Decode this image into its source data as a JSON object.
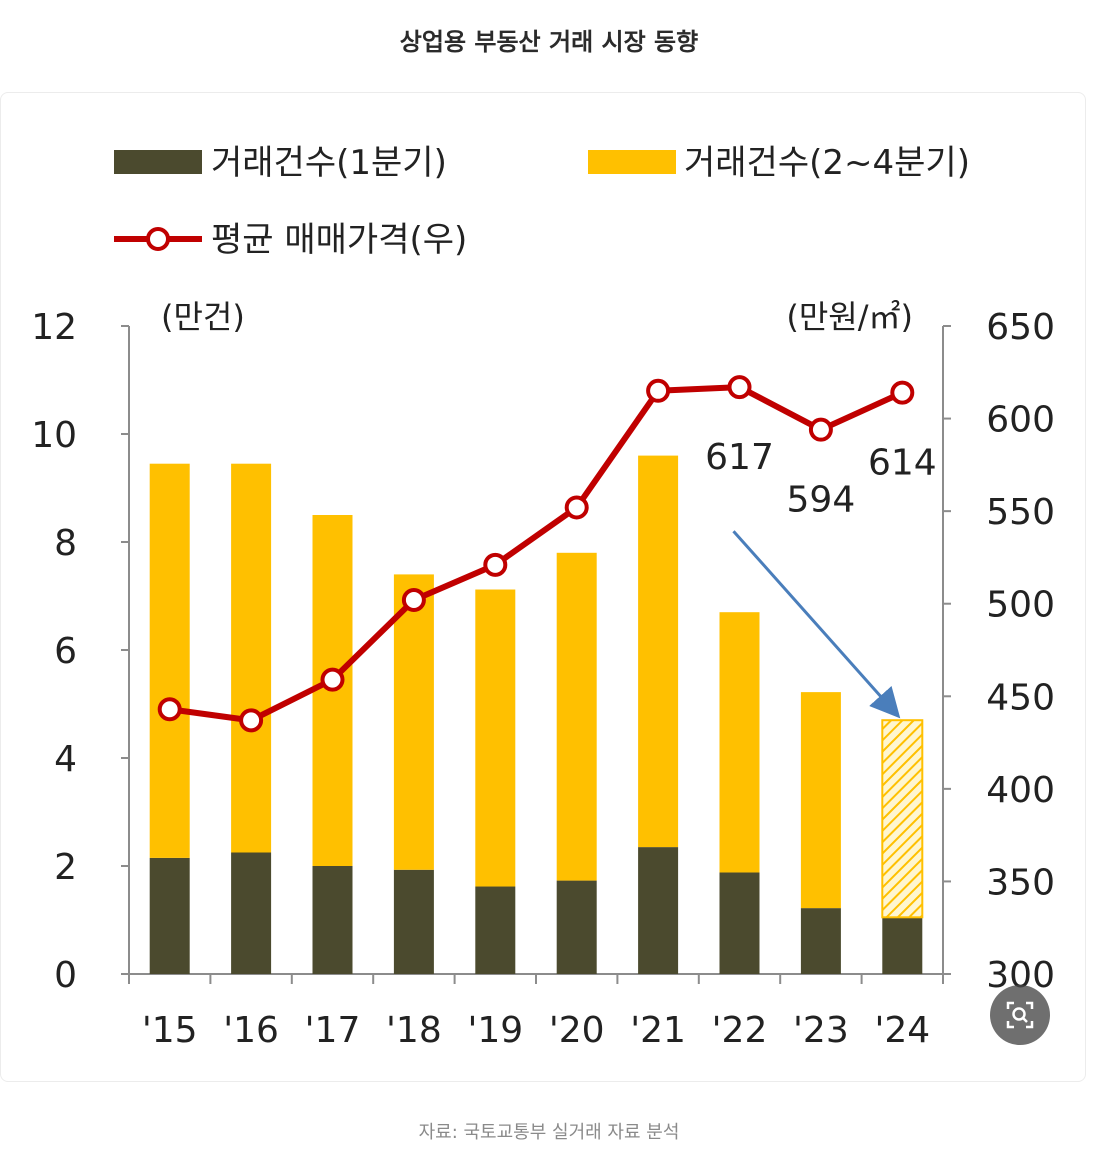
{
  "page": {
    "title": "상업용 부동산 거래 시장 동향",
    "source": "자료: 국토교통부 실거래 자료 분석",
    "zoom_icon": "zoom-search-icon"
  },
  "colors": {
    "q1": "#4b4a2e",
    "q24": "#ffc000",
    "line": "#c00000",
    "arrow": "#4a7ebb",
    "axis": "#8c8c8c"
  },
  "chart_data": {
    "type": "bar",
    "title": "상업용 부동산 거래 시장 동향",
    "categories": [
      "'15",
      "'16",
      "'17",
      "'18",
      "'19",
      "'20",
      "'21",
      "'22",
      "'23",
      "'24"
    ],
    "series": [
      {
        "name": "거래건수(1분기)",
        "kind": "stacked-bar",
        "axis": "left",
        "values": [
          2.15,
          2.25,
          2.0,
          1.93,
          1.62,
          1.73,
          2.35,
          1.88,
          1.22,
          1.05
        ]
      },
      {
        "name": "거래건수(2~4분기)",
        "kind": "stacked-bar",
        "axis": "left",
        "values": [
          7.3,
          7.2,
          6.5,
          5.47,
          5.5,
          6.07,
          7.25,
          4.82,
          4.0,
          null
        ],
        "projected_values": [
          null,
          null,
          null,
          null,
          null,
          null,
          null,
          null,
          null,
          3.65
        ]
      },
      {
        "name": "평균 매매가격(우)",
        "kind": "line",
        "axis": "right",
        "values": [
          443,
          437,
          459,
          502,
          521,
          552,
          615,
          617,
          594,
          614
        ]
      }
    ],
    "point_labels": [
      {
        "index": 7,
        "text": "617"
      },
      {
        "index": 8,
        "text": "594"
      },
      {
        "index": 9,
        "text": "614"
      }
    ],
    "left_axis": {
      "unit": "(만건)",
      "min": 0,
      "max": 12,
      "ticks": [
        "0",
        "2",
        "4",
        "6",
        "8",
        "10",
        "12"
      ]
    },
    "right_axis": {
      "unit": "(만원/㎡)",
      "min": 300,
      "max": 650,
      "ticks": [
        "300",
        "350",
        "400",
        "450",
        "500",
        "550",
        "600",
        "650"
      ]
    },
    "legend_position": "top",
    "annotation": {
      "kind": "arrow",
      "from_category": "'22",
      "to_category": "'24",
      "meaning": "declining trade volume"
    }
  }
}
